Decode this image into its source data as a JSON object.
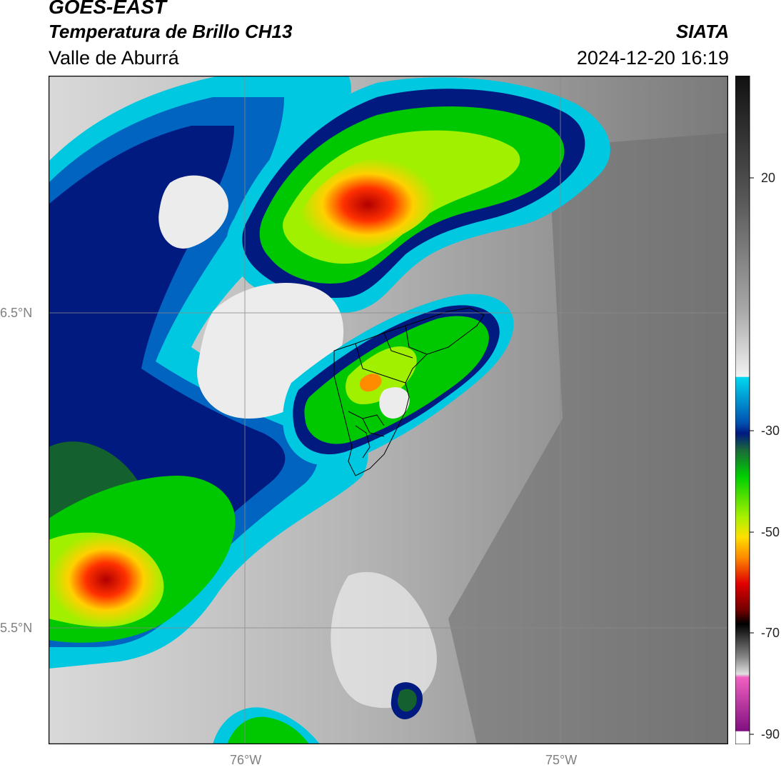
{
  "header": {
    "satellite": "GOES-EAST",
    "product": "Temperatura de Brillo CH13",
    "region": "Valle de Aburrá",
    "org": "SIATA",
    "datetime": "2024-12-20 16:19"
  },
  "map": {
    "lat_labels": [
      "6.5°N",
      "5.5°N"
    ],
    "lon_labels": [
      "76°W",
      "75°W"
    ],
    "grid_color": "#8a8a8a",
    "palette": {
      "gray_dark": "#5a5a5a",
      "gray_mid": "#8c8c8c",
      "gray_light": "#c8c8c8",
      "near_white": "#ececec",
      "cyan": "#00c8e0",
      "blue": "#0064c0",
      "navy": "#001a80",
      "dark_green": "#14602e",
      "green": "#00c800",
      "lime": "#a0f000",
      "yellow": "#ffe000",
      "orange": "#ff8c00",
      "red": "#e00000",
      "dark_red": "#a00000"
    }
  },
  "colorbar": {
    "tick_labels": [
      "20",
      "-30",
      "-50",
      "-70",
      "-90"
    ]
  }
}
